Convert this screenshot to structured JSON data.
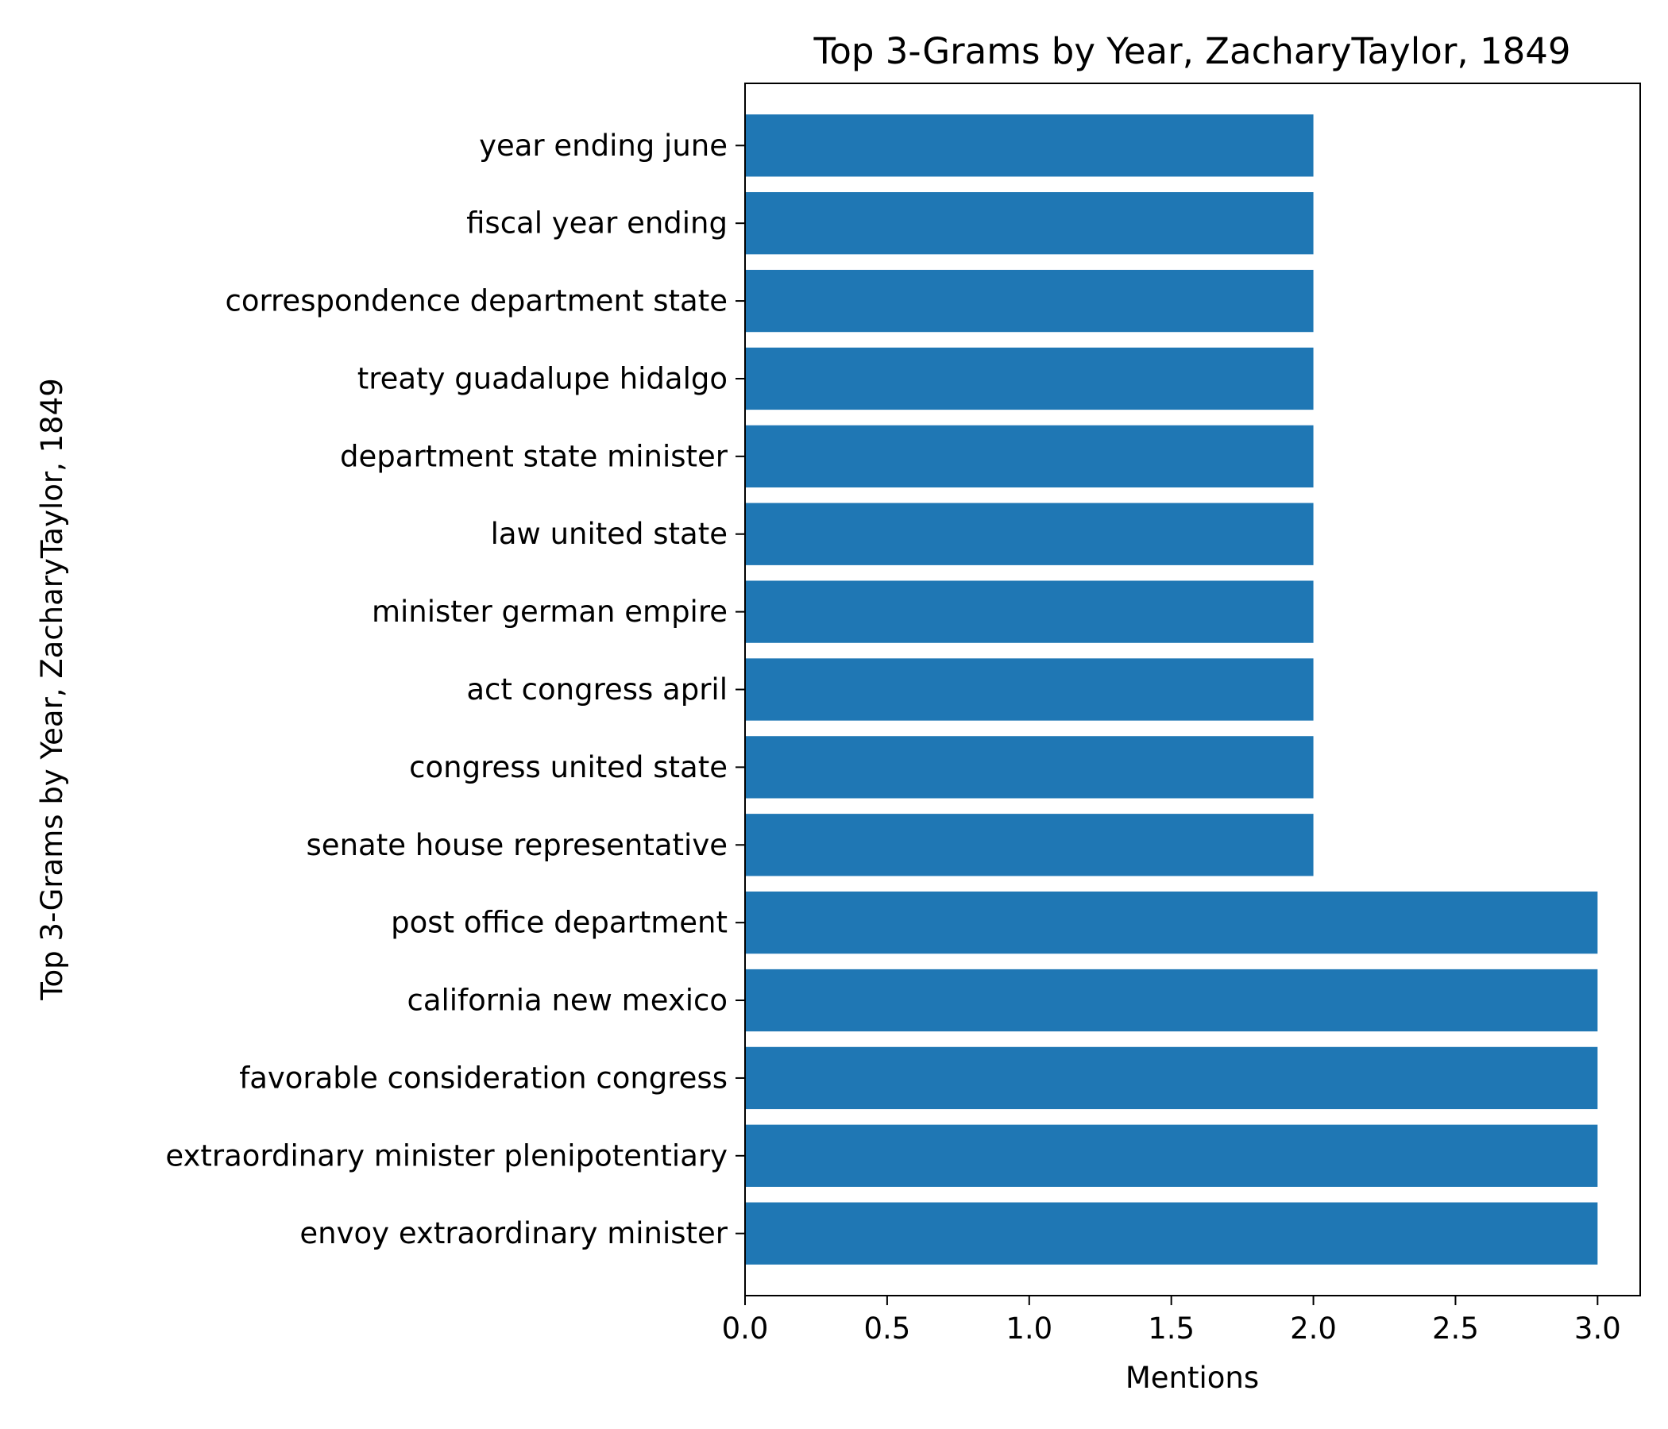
{
  "chart_data": {
    "type": "bar",
    "orientation": "horizontal",
    "title": "Top 3-Grams by Year, ZacharyTaylor, 1849",
    "xlabel": "Mentions",
    "ylabel": "Top 3-Grams by Year, ZacharyTaylor, 1849",
    "categories": [
      "envoy extraordinary minister",
      "extraordinary minister plenipotentiary",
      "favorable consideration congress",
      "california new mexico",
      "post office department",
      "senate house representative",
      "congress united state",
      "act congress april",
      "minister german empire",
      "law united state",
      "department state minister",
      "treaty guadalupe hidalgo",
      "correspondence department state",
      "fiscal year ending",
      "year ending june"
    ],
    "values": [
      3,
      3,
      3,
      3,
      3,
      2,
      2,
      2,
      2,
      2,
      2,
      2,
      2,
      2,
      2
    ],
    "xlim": [
      0,
      3.15
    ],
    "xticks": [
      "0.0",
      "0.5",
      "1.0",
      "1.5",
      "2.0",
      "2.5",
      "3.0"
    ],
    "bar_color": "#1f77b4",
    "grid": false,
    "legend": "none"
  }
}
